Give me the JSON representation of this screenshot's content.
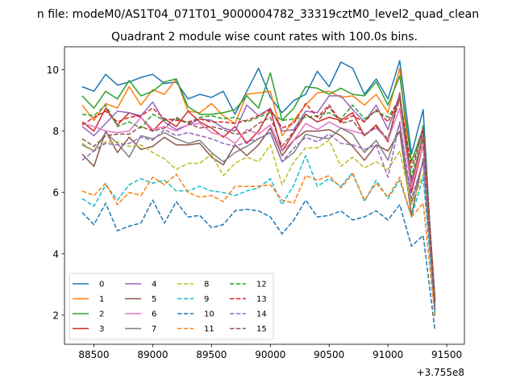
{
  "chart_data": {
    "type": "line",
    "suptitle": "n file: modeM0/AS1T04_071T01_9000004782_33319cztM0_level2_quad_clean",
    "title": "Quadrant 2 module wise count rates with 100.0s bins.",
    "xlabel": "",
    "ylabel": "",
    "x_offset_label": "+3.755e8",
    "xlim": [
      88250,
      91650
    ],
    "ylim": [
      1.05,
      10.75
    ],
    "xticks": [
      88500,
      89000,
      89500,
      90000,
      90500,
      91000,
      91500
    ],
    "xtick_labels": [
      "88500",
      "89000",
      "89500",
      "90000",
      "90500",
      "91000",
      "91500"
    ],
    "yticks": [
      2,
      4,
      6,
      8,
      10
    ],
    "ytick_labels": [
      "2",
      "4",
      "6",
      "8",
      "10"
    ],
    "legend_position": "lower-left",
    "legend_columns": 4,
    "x": [
      88400,
      88500,
      88600,
      88700,
      88800,
      88900,
      89000,
      89100,
      89200,
      89300,
      89400,
      89500,
      89600,
      89700,
      89800,
      89900,
      90000,
      90100,
      90200,
      90300,
      90400,
      90500,
      90600,
      90700,
      90800,
      90900,
      91000,
      91100,
      91200,
      91300,
      91400
    ],
    "series": [
      {
        "name": "0",
        "color": "#1f77b4",
        "dash": "solid",
        "values": [
          9.45,
          9.3,
          9.85,
          9.5,
          9.6,
          9.75,
          9.85,
          9.55,
          9.6,
          9.05,
          9.2,
          9.1,
          9.3,
          8.55,
          9.3,
          10.05,
          9.1,
          8.6,
          9.0,
          9.2,
          9.95,
          9.45,
          10.25,
          10.05,
          9.2,
          9.7,
          9.05,
          10.3,
          7.25,
          8.7,
          2.0
        ]
      },
      {
        "name": "1",
        "color": "#ff7f0e",
        "dash": "solid",
        "values": [
          8.85,
          8.35,
          8.9,
          8.75,
          9.45,
          8.85,
          9.35,
          9.2,
          9.7,
          8.65,
          8.6,
          8.9,
          8.5,
          8.25,
          9.2,
          9.25,
          9.3,
          7.85,
          8.35,
          8.85,
          9.25,
          9.3,
          9.1,
          9.15,
          8.85,
          9.2,
          8.6,
          10.05,
          6.2,
          7.8,
          2.4
        ]
      },
      {
        "name": "2",
        "color": "#2ca02c",
        "dash": "solid",
        "values": [
          9.15,
          8.75,
          9.3,
          9.05,
          9.65,
          9.15,
          9.3,
          9.6,
          9.7,
          8.8,
          8.55,
          8.55,
          8.6,
          8.7,
          9.15,
          8.75,
          9.9,
          8.35,
          8.75,
          9.45,
          9.4,
          9.2,
          9.4,
          9.2,
          9.15,
          9.6,
          8.85,
          9.8,
          7.0,
          8.1,
          2.3
        ]
      },
      {
        "name": "3",
        "color": "#d62728",
        "dash": "solid",
        "values": [
          8.3,
          8.0,
          8.75,
          8.2,
          8.6,
          8.45,
          8.0,
          8.4,
          8.15,
          8.65,
          8.3,
          8.1,
          7.8,
          8.15,
          7.6,
          8.0,
          8.7,
          7.35,
          7.95,
          8.55,
          8.3,
          8.45,
          8.35,
          8.6,
          7.85,
          8.2,
          7.65,
          9.25,
          6.0,
          7.55,
          2.15
        ]
      },
      {
        "name": "4",
        "color": "#9467bd",
        "dash": "solid",
        "values": [
          8.15,
          7.85,
          8.25,
          8.65,
          8.6,
          8.5,
          8.95,
          8.3,
          8.05,
          8.2,
          8.4,
          8.35,
          8.1,
          8.0,
          8.85,
          8.5,
          8.75,
          8.0,
          8.05,
          8.65,
          8.6,
          9.15,
          9.15,
          8.7,
          8.3,
          8.85,
          8.05,
          9.2,
          6.3,
          7.95,
          2.55
        ]
      },
      {
        "name": "5",
        "color": "#8c564b",
        "dash": "solid",
        "values": [
          7.25,
          6.85,
          8.0,
          7.3,
          7.8,
          7.4,
          7.5,
          7.8,
          7.55,
          7.55,
          7.6,
          7.15,
          6.9,
          7.55,
          7.2,
          7.55,
          8.1,
          7.2,
          7.7,
          8.0,
          8.0,
          8.05,
          7.85,
          7.5,
          7.05,
          7.55,
          7.35,
          8.0,
          5.25,
          7.1,
          2.15
        ]
      },
      {
        "name": "6",
        "color": "#e377c2",
        "dash": "solid",
        "values": [
          8.25,
          8.15,
          8.0,
          7.95,
          8.0,
          8.45,
          8.05,
          8.15,
          8.0,
          8.2,
          8.25,
          7.95,
          7.85,
          7.6,
          8.05,
          7.9,
          8.2,
          7.35,
          7.7,
          8.25,
          8.05,
          8.3,
          8.1,
          8.0,
          7.9,
          8.1,
          7.7,
          8.75,
          6.15,
          7.55,
          2.35
        ]
      },
      {
        "name": "7",
        "color": "#7f7f7f",
        "dash": "solid",
        "values": [
          7.55,
          7.35,
          7.95,
          7.6,
          7.15,
          7.85,
          7.75,
          7.95,
          7.75,
          7.6,
          7.7,
          7.3,
          7.0,
          7.3,
          7.5,
          7.75,
          7.95,
          7.0,
          7.3,
          7.9,
          7.8,
          7.75,
          8.1,
          7.9,
          7.3,
          7.7,
          7.05,
          8.25,
          5.65,
          7.05,
          2.2
        ]
      },
      {
        "name": "8",
        "color": "#bcbd22",
        "dash": "dashed",
        "values": [
          7.6,
          7.35,
          7.65,
          7.65,
          7.5,
          7.55,
          7.3,
          7.1,
          6.75,
          6.95,
          6.95,
          7.25,
          6.55,
          6.95,
          7.15,
          7.0,
          7.55,
          6.25,
          7.0,
          7.45,
          7.45,
          7.7,
          6.85,
          7.15,
          6.8,
          7.0,
          6.75,
          7.35,
          5.6,
          6.6,
          2.15
        ]
      },
      {
        "name": "9",
        "color": "#17becf",
        "dash": "dashed",
        "values": [
          5.8,
          5.55,
          6.25,
          5.75,
          6.25,
          6.45,
          6.3,
          6.4,
          6.05,
          6.05,
          6.2,
          6.05,
          6.0,
          5.9,
          6.05,
          6.15,
          6.45,
          5.6,
          6.25,
          7.2,
          6.2,
          6.45,
          6.2,
          6.65,
          5.7,
          6.4,
          5.8,
          6.4,
          5.2,
          6.5,
          2.05
        ]
      },
      {
        "name": "10",
        "color": "#1f77b4",
        "dash": "dashed",
        "values": [
          5.35,
          4.95,
          5.65,
          4.75,
          4.9,
          5.0,
          5.75,
          5.0,
          5.7,
          5.2,
          5.25,
          4.85,
          4.95,
          5.4,
          5.45,
          5.4,
          5.2,
          4.65,
          5.1,
          5.75,
          5.2,
          5.25,
          5.4,
          5.1,
          5.2,
          5.4,
          5.1,
          5.6,
          4.25,
          4.6,
          1.5
        ]
      },
      {
        "name": "11",
        "color": "#ff7f0e",
        "dash": "dashed",
        "values": [
          6.05,
          5.9,
          6.3,
          5.6,
          6.0,
          5.9,
          6.5,
          6.25,
          6.6,
          6.0,
          5.85,
          5.9,
          5.7,
          6.2,
          6.2,
          6.2,
          6.25,
          5.75,
          5.65,
          6.55,
          6.4,
          6.55,
          6.15,
          6.6,
          5.75,
          6.3,
          5.85,
          6.5,
          5.2,
          5.65,
          1.95
        ]
      },
      {
        "name": "12",
        "color": "#2ca02c",
        "dash": "dashed",
        "values": [
          8.55,
          8.5,
          8.85,
          8.15,
          8.3,
          8.1,
          8.55,
          8.35,
          8.4,
          8.25,
          8.45,
          8.5,
          8.4,
          8.45,
          8.3,
          8.45,
          8.6,
          8.35,
          8.4,
          8.45,
          8.5,
          8.6,
          8.4,
          8.85,
          8.4,
          8.65,
          8.45,
          9.05,
          6.5,
          8.2,
          2.5
        ]
      },
      {
        "name": "13",
        "color": "#d62728",
        "dash": "dashed",
        "values": [
          8.2,
          8.45,
          8.65,
          8.3,
          8.45,
          8.5,
          8.75,
          8.4,
          8.35,
          8.3,
          8.4,
          8.3,
          8.3,
          8.25,
          8.35,
          8.5,
          8.7,
          8.1,
          8.25,
          8.9,
          8.45,
          8.85,
          8.3,
          8.5,
          8.3,
          8.7,
          8.3,
          9.1,
          6.8,
          8.05,
          2.45
        ]
      },
      {
        "name": "14",
        "color": "#9467bd",
        "dash": "dashed",
        "values": [
          7.05,
          7.35,
          7.6,
          7.55,
          7.6,
          7.8,
          7.7,
          8.05,
          7.85,
          7.95,
          7.85,
          7.75,
          7.6,
          7.5,
          7.65,
          7.75,
          7.95,
          7.0,
          7.45,
          7.8,
          7.65,
          7.9,
          7.6,
          7.55,
          7.4,
          7.55,
          6.5,
          8.3,
          5.8,
          7.0,
          2.2
        ]
      },
      {
        "name": "15",
        "color": "#8c564b",
        "dash": "dashed",
        "values": [
          7.75,
          7.5,
          7.85,
          7.9,
          7.9,
          8.15,
          8.0,
          8.1,
          8.45,
          8.25,
          8.1,
          8.15,
          8.05,
          7.9,
          7.95,
          8.25,
          8.45,
          7.5,
          8.0,
          8.55,
          8.3,
          8.8,
          8.25,
          8.35,
          7.85,
          8.15,
          7.75,
          9.05,
          6.4,
          7.75,
          2.3
        ]
      }
    ]
  }
}
